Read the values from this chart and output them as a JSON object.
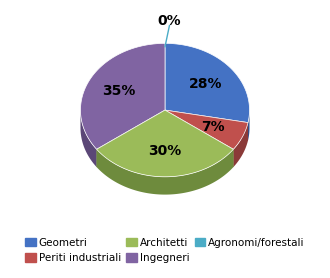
{
  "labels": [
    "Geometri",
    "Periti industriali",
    "Architetti",
    "Ingegneri",
    "Agronomi/forestali"
  ],
  "values": [
    28,
    7,
    30,
    35,
    0
  ],
  "colors": [
    "#4472C4",
    "#C0504D",
    "#9BBB59",
    "#8064A2",
    "#4BACC6"
  ],
  "colors_dark": [
    "#2E508E",
    "#8B3A38",
    "#6E8B3D",
    "#5B4777",
    "#2E7A8E"
  ],
  "startangle": 90,
  "pct_distance": 0.65,
  "legend_fontsize": 7.5,
  "label_fontsize": 10,
  "depth": 0.08
}
